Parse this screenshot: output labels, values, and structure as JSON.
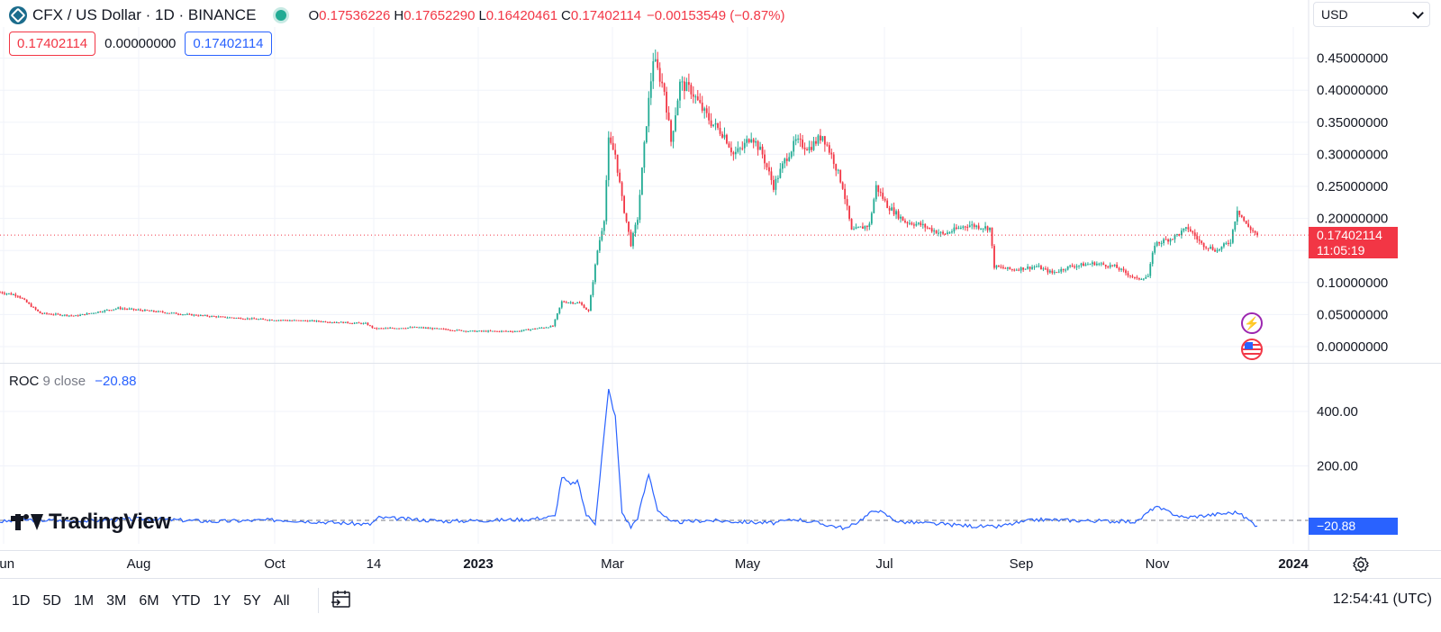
{
  "header": {
    "symbol_title": "CFX / US Dollar · 1D · BINANCE",
    "open_label": "O",
    "open_value": "0.17536226",
    "high_label": "H",
    "high_value": "0.17652290",
    "low_label": "L",
    "low_value": "0.16420461",
    "close_label": "C",
    "close_value": "0.17402114",
    "change_text": "−0.00153549 (−0.87%)",
    "sell_price": "0.17402114",
    "spread": "0.00000000",
    "buy_price": "0.17402114"
  },
  "currency_select": {
    "value": "USD"
  },
  "indicator": {
    "name": "ROC",
    "params": "9 close",
    "value": "−20.88"
  },
  "last_price": {
    "value": "0.17402114",
    "countdown": "11:05:19"
  },
  "roc_last": "−20.88",
  "watermark": "TradingView",
  "time_axis": [
    "Jun",
    "Aug",
    "Oct",
    "14",
    "2023",
    "Mar",
    "May",
    "Jul",
    "Sep",
    "Nov",
    "2024"
  ],
  "ranges": [
    "1D",
    "5D",
    "1M",
    "3M",
    "6M",
    "YTD",
    "1Y",
    "5Y",
    "All"
  ],
  "clock": "12:54:41 (UTC)",
  "colors": {
    "up": "#22ab94",
    "down": "#f23645",
    "roc_line": "#2962ff",
    "grid": "#f0f3fa"
  },
  "chart_data": [
    {
      "type": "candlestick",
      "title": "CFX / US Dollar · 1D · BINANCE",
      "x_label": "",
      "y_label": "",
      "x_range": [
        "2022-05-28",
        "2024-01-05"
      ],
      "ylim": [
        -0.025,
        0.495
      ],
      "y_ticks": [
        "0.00000000",
        "0.05000000",
        "0.10000000",
        "0.15000000",
        "0.20000000",
        "0.25000000",
        "0.30000000",
        "0.35000000",
        "0.40000000",
        "0.45000000"
      ],
      "x_ticks": [
        "Jun",
        "Aug",
        "Oct",
        "14",
        "2023",
        "Mar",
        "May",
        "Jul",
        "Sep",
        "Nov",
        "2024"
      ],
      "grid": true,
      "series": [
        {
          "name": "CFX/USD",
          "close_anchors": [
            [
              "2022-05-28",
              0.085
            ],
            [
              "2022-06-05",
              0.08
            ],
            [
              "2022-06-15",
              0.052
            ],
            [
              "2022-07-01",
              0.048
            ],
            [
              "2022-07-20",
              0.06
            ],
            [
              "2022-08-05",
              0.055
            ],
            [
              "2022-08-20",
              0.05
            ],
            [
              "2022-09-05",
              0.046
            ],
            [
              "2022-09-25",
              0.042
            ],
            [
              "2022-10-15",
              0.04
            ],
            [
              "2022-11-08",
              0.036
            ],
            [
              "2022-11-12",
              0.028
            ],
            [
              "2022-12-01",
              0.03
            ],
            [
              "2022-12-25",
              0.024
            ],
            [
              "2023-01-15",
              0.024
            ],
            [
              "2023-01-31",
              0.032
            ],
            [
              "2023-02-04",
              0.07
            ],
            [
              "2023-02-12",
              0.068
            ],
            [
              "2023-02-16",
              0.055
            ],
            [
              "2023-02-20",
              0.15
            ],
            [
              "2023-02-23",
              0.2
            ],
            [
              "2023-02-25",
              0.32
            ],
            [
              "2023-02-28",
              0.3
            ],
            [
              "2023-03-03",
              0.23
            ],
            [
              "2023-03-07",
              0.16
            ],
            [
              "2023-03-10",
              0.2
            ],
            [
              "2023-03-14",
              0.35
            ],
            [
              "2023-03-17",
              0.45
            ],
            [
              "2023-03-22",
              0.4
            ],
            [
              "2023-03-25",
              0.32
            ],
            [
              "2023-03-29",
              0.41
            ],
            [
              "2023-04-03",
              0.4
            ],
            [
              "2023-04-08",
              0.37
            ],
            [
              "2023-04-12",
              0.35
            ],
            [
              "2023-04-18",
              0.33
            ],
            [
              "2023-04-22",
              0.3
            ],
            [
              "2023-04-26",
              0.31
            ],
            [
              "2023-04-30",
              0.33
            ],
            [
              "2023-05-05",
              0.3
            ],
            [
              "2023-05-10",
              0.25
            ],
            [
              "2023-05-15",
              0.29
            ],
            [
              "2023-05-20",
              0.32
            ],
            [
              "2023-05-26",
              0.31
            ],
            [
              "2023-06-01",
              0.33
            ],
            [
              "2023-06-06",
              0.29
            ],
            [
              "2023-06-10",
              0.25
            ],
            [
              "2023-06-14",
              0.18
            ],
            [
              "2023-06-18",
              0.185
            ],
            [
              "2023-06-22",
              0.19
            ],
            [
              "2023-06-25",
              0.25
            ],
            [
              "2023-06-30",
              0.22
            ],
            [
              "2023-07-08",
              0.195
            ],
            [
              "2023-07-15",
              0.19
            ],
            [
              "2023-07-25",
              0.175
            ],
            [
              "2023-08-05",
              0.19
            ],
            [
              "2023-08-15",
              0.185
            ],
            [
              "2023-08-17",
              0.125
            ],
            [
              "2023-08-25",
              0.12
            ],
            [
              "2023-09-05",
              0.125
            ],
            [
              "2023-09-12",
              0.115
            ],
            [
              "2023-09-20",
              0.125
            ],
            [
              "2023-10-01",
              0.13
            ],
            [
              "2023-10-10",
              0.125
            ],
            [
              "2023-10-20",
              0.105
            ],
            [
              "2023-10-25",
              0.11
            ],
            [
              "2023-10-28",
              0.16
            ],
            [
              "2023-11-05",
              0.17
            ],
            [
              "2023-11-12",
              0.185
            ],
            [
              "2023-11-18",
              0.16
            ],
            [
              "2023-11-25",
              0.15
            ],
            [
              "2023-12-01",
              0.165
            ],
            [
              "2023-12-04",
              0.215
            ],
            [
              "2023-12-08",
              0.19
            ],
            [
              "2023-12-13",
              0.174
            ]
          ]
        }
      ]
    },
    {
      "type": "line",
      "title": "ROC 9 close",
      "x_label": "",
      "y_label": "",
      "ylim": [
        -30,
        510
      ],
      "y_ticks": [
        "200.00",
        "400.00"
      ],
      "grid": true,
      "series": [
        {
          "name": "ROC",
          "points": [
            [
              "2022-05-28",
              -5
            ],
            [
              "2022-06-10",
              2
            ],
            [
              "2022-07-01",
              -3
            ],
            [
              "2022-08-01",
              6
            ],
            [
              "2022-09-01",
              -4
            ],
            [
              "2022-10-01",
              2
            ],
            [
              "2022-11-10",
              -15
            ],
            [
              "2022-11-14",
              10
            ],
            [
              "2022-12-15",
              -3
            ],
            [
              "2023-01-20",
              4
            ],
            [
              "2023-02-01",
              15
            ],
            [
              "2023-02-04",
              160
            ],
            [
              "2023-02-08",
              130
            ],
            [
              "2023-02-11",
              145
            ],
            [
              "2023-02-15",
              20
            ],
            [
              "2023-02-19",
              -10
            ],
            [
              "2023-02-25",
              480
            ],
            [
              "2023-02-28",
              380
            ],
            [
              "2023-03-03",
              30
            ],
            [
              "2023-03-07",
              -25
            ],
            [
              "2023-03-10",
              10
            ],
            [
              "2023-03-15",
              170
            ],
            [
              "2023-03-19",
              40
            ],
            [
              "2023-03-25",
              -8
            ],
            [
              "2023-04-10",
              0
            ],
            [
              "2023-05-10",
              -10
            ],
            [
              "2023-05-20",
              5
            ],
            [
              "2023-06-12",
              -30
            ],
            [
              "2023-06-25",
              40
            ],
            [
              "2023-07-05",
              -5
            ],
            [
              "2023-08-17",
              -25
            ],
            [
              "2023-09-05",
              3
            ],
            [
              "2023-10-20",
              -5
            ],
            [
              "2023-10-28",
              50
            ],
            [
              "2023-11-10",
              10
            ],
            [
              "2023-12-04",
              30
            ],
            [
              "2023-12-13",
              -20.88
            ]
          ]
        }
      ]
    }
  ]
}
